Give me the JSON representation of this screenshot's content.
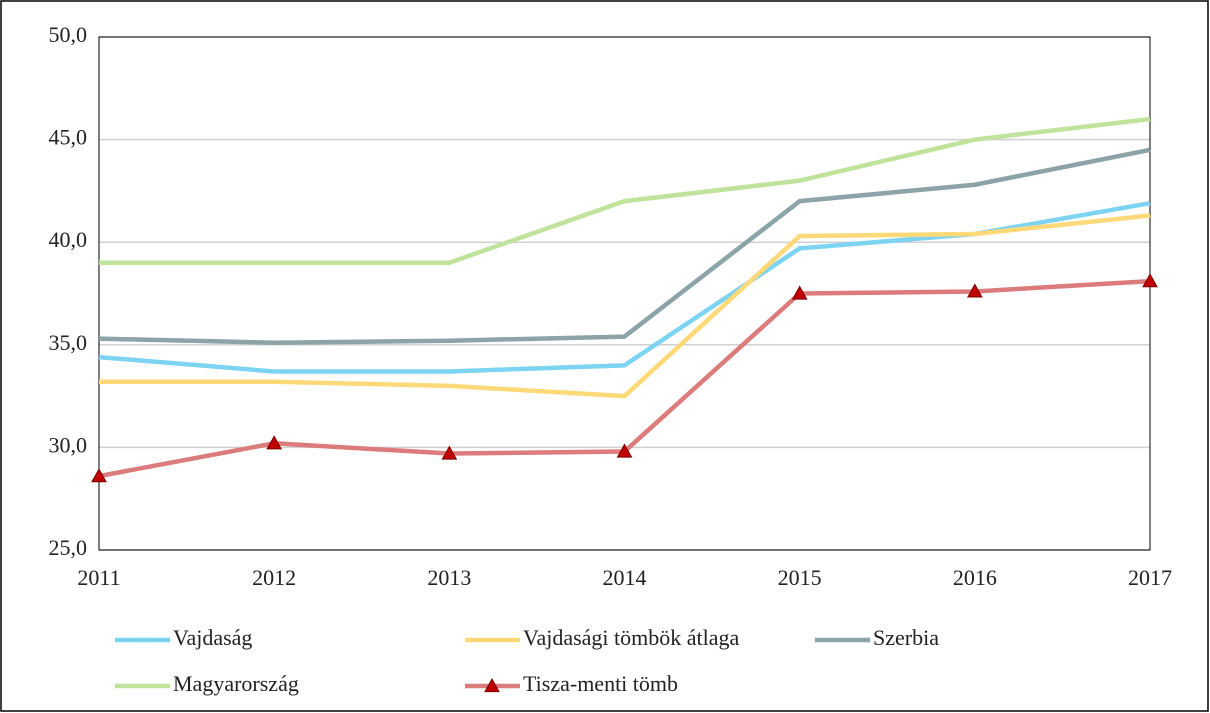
{
  "chart_data": {
    "type": "line",
    "categories": [
      "2011",
      "2012",
      "2013",
      "2014",
      "2015",
      "2016",
      "2017"
    ],
    "series": [
      {
        "name": "Vajdaság",
        "color": "#7dd3f2",
        "values": [
          34.4,
          33.7,
          33.7,
          34.0,
          39.7,
          40.4,
          41.9
        ]
      },
      {
        "name": "Vajdasági tömbök átlaga",
        "color": "#ffd978",
        "values": [
          33.2,
          33.2,
          33.0,
          32.5,
          40.3,
          40.4,
          41.3
        ]
      },
      {
        "name": "Szerbia",
        "color": "#8ca4a8",
        "values": [
          35.3,
          35.1,
          35.2,
          35.4,
          42.0,
          42.8,
          44.5
        ]
      },
      {
        "name": "Magyarország",
        "color": "#bfe39b",
        "values": [
          39.0,
          39.0,
          39.0,
          42.0,
          43.0,
          45.0,
          46.0
        ]
      },
      {
        "name": "Tisza-menti tömb",
        "color": "#dc7b7b",
        "marker": "triangle",
        "marker_color": "#c00000",
        "values": [
          28.6,
          30.2,
          29.7,
          29.8,
          37.5,
          37.6,
          38.1
        ]
      }
    ],
    "ylim": [
      25,
      50
    ],
    "yticks": [
      {
        "value": 25,
        "label": "25,0"
      },
      {
        "value": 30,
        "label": "30,0"
      },
      {
        "value": 35,
        "label": "35,0"
      },
      {
        "value": 40,
        "label": "40,0"
      },
      {
        "value": 45,
        "label": "45,0"
      },
      {
        "value": 50,
        "label": "50,0"
      }
    ],
    "grid": true,
    "legend": "bottom"
  }
}
